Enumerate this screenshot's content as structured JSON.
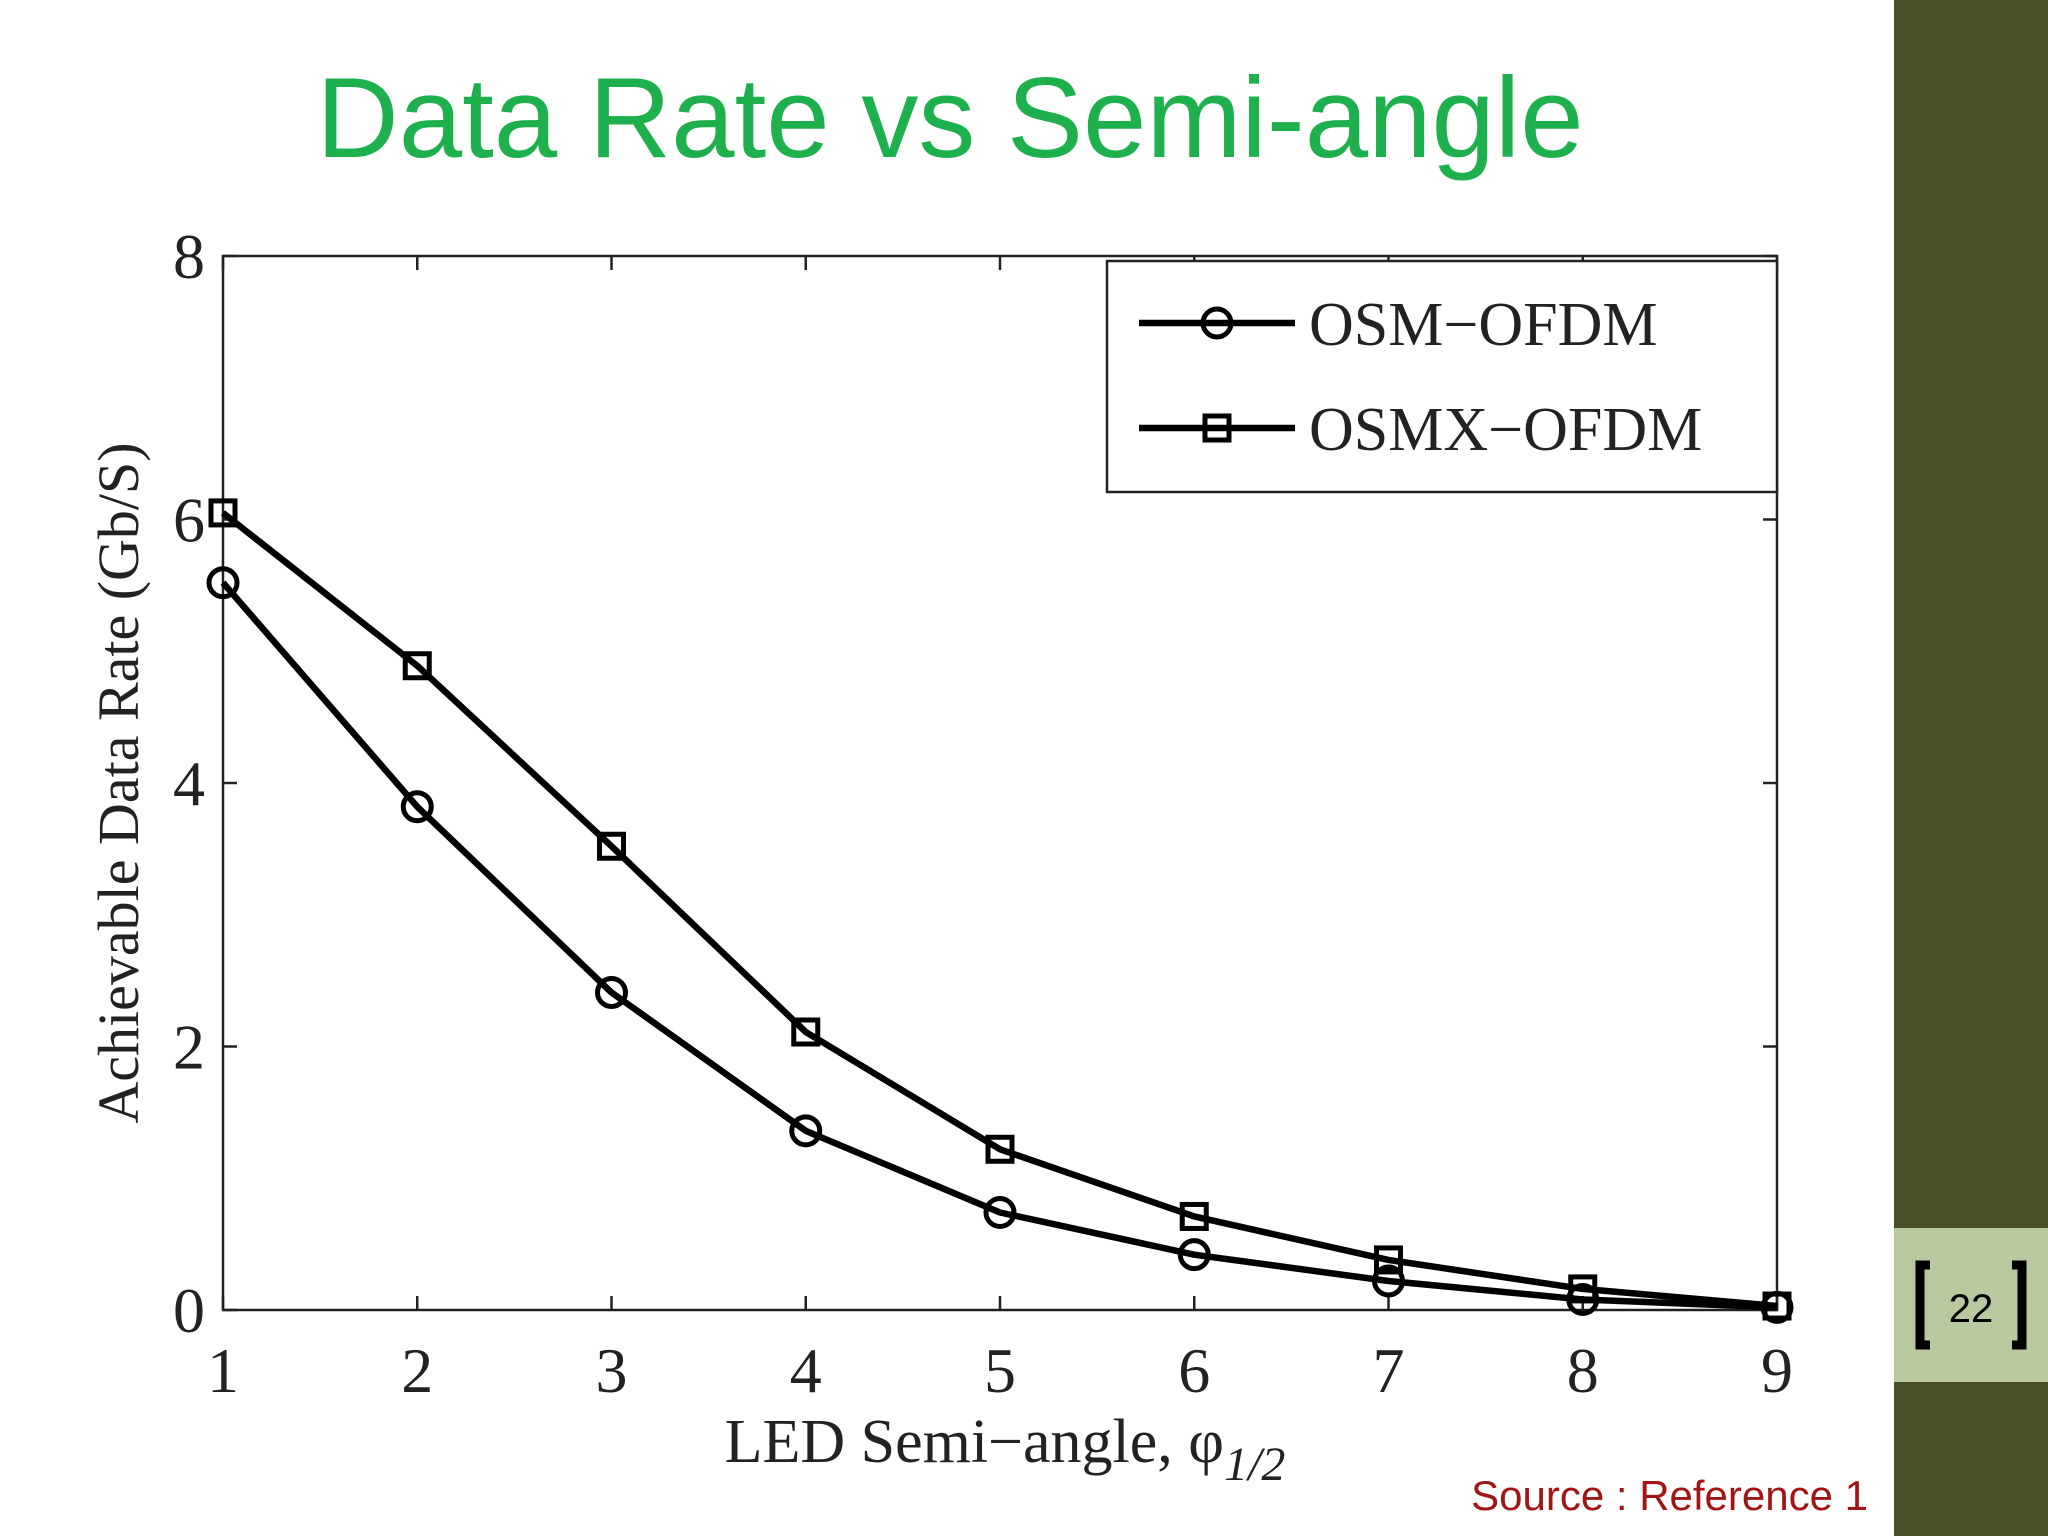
{
  "chart_data": {
    "type": "line",
    "title": "Data Rate vs Semi-angle",
    "xlabel": "LED Semi−angle, φ",
    "xlabel_subscript": "1/2",
    "ylabel": "Achievable Data Rate (Gb/S)",
    "x": [
      1,
      2,
      3,
      4,
      5,
      6,
      7,
      8,
      9
    ],
    "series": [
      {
        "name": "OSM−OFDM",
        "color": "#000000",
        "marker": "circle",
        "values": [
          5.52,
          3.82,
          2.41,
          1.36,
          0.74,
          0.42,
          0.22,
          0.08,
          0.02
        ]
      },
      {
        "name": "OSMX−OFDM",
        "color": "#000000",
        "marker": "square",
        "values": [
          6.05,
          4.89,
          3.52,
          2.11,
          1.22,
          0.71,
          0.38,
          0.16,
          0.03
        ]
      }
    ],
    "xlim": [
      1,
      9
    ],
    "xticks": [
      1,
      2,
      3,
      4,
      5,
      6,
      7,
      8,
      9
    ],
    "ylim": [
      0,
      8
    ],
    "yticks": [
      0,
      2,
      4,
      6,
      8
    ],
    "grid": false,
    "legend": "upper right"
  },
  "slide": {
    "source": "Source : Reference 1",
    "page_number": 22
  }
}
